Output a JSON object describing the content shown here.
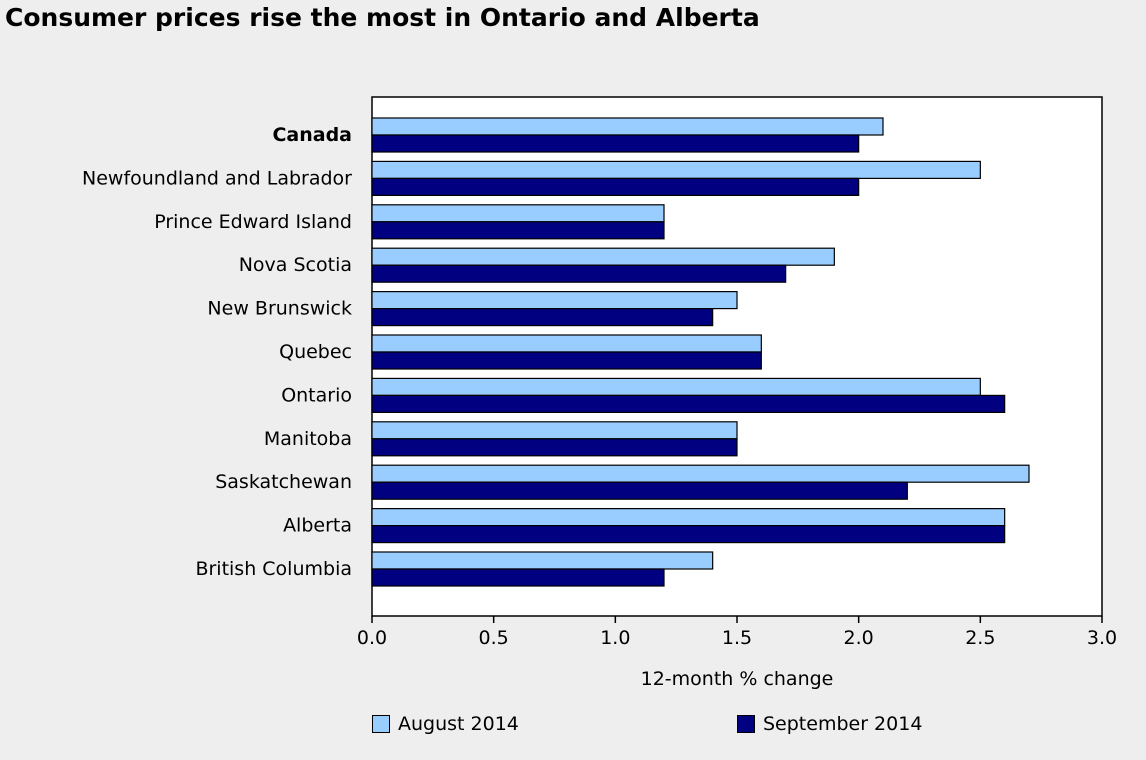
{
  "title": "Consumer prices rise the most in Ontario and Alberta",
  "chart_data": {
    "type": "bar",
    "orientation": "horizontal",
    "categories": [
      "Canada",
      "Newfoundland and Labrador",
      "Prince Edward Island",
      "Nova Scotia",
      "New Brunswick",
      "Quebec",
      "Ontario",
      "Manitoba",
      "Saskatchewan",
      "Alberta",
      "British Columbia"
    ],
    "series": [
      {
        "name": "August 2014",
        "color": "#99ccff",
        "values": [
          2.1,
          2.5,
          1.2,
          1.9,
          1.5,
          1.6,
          2.5,
          1.5,
          2.7,
          2.6,
          1.4
        ]
      },
      {
        "name": "September 2014",
        "color": "#000080",
        "values": [
          2.0,
          2.0,
          1.2,
          1.7,
          1.4,
          1.6,
          2.6,
          1.5,
          2.2,
          2.6,
          1.2
        ]
      }
    ],
    "xlabel": "12-month % change",
    "xlim": [
      0,
      3.0
    ],
    "x_ticks": [
      "0.0",
      "0.5",
      "1.0",
      "1.5",
      "2.0",
      "2.5",
      "3.0"
    ],
    "grid": false,
    "legend_position": "bottom",
    "bold_category": "Canada"
  }
}
